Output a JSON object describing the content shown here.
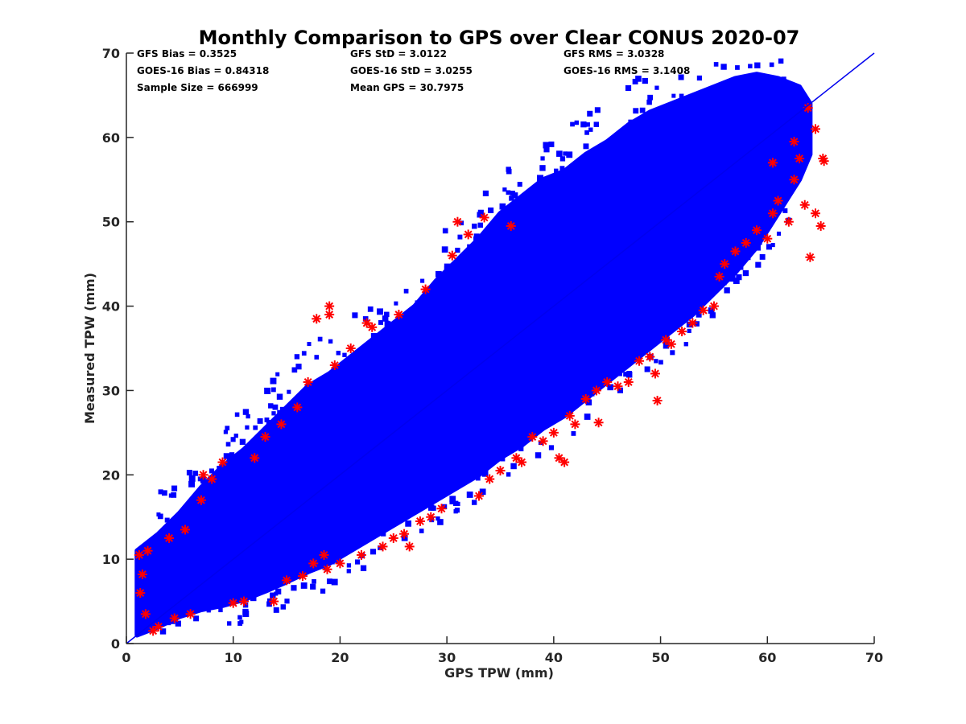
{
  "chart_data": {
    "type": "scatter",
    "title": "Monthly Comparison to GPS over Clear CONUS 2020-07",
    "xlabel": "GPS TPW (mm)",
    "ylabel": "Measured TPW (mm)",
    "xlim": [
      0,
      70
    ],
    "ylim": [
      0,
      70
    ],
    "xticks": [
      0,
      10,
      20,
      30,
      40,
      50,
      60,
      70
    ],
    "yticks": [
      0,
      10,
      20,
      30,
      40,
      50,
      60,
      70
    ],
    "grid": false,
    "one_to_one_line": [
      [
        0,
        0
      ],
      [
        70,
        70
      ]
    ],
    "stats": [
      [
        "GFS Bias = 0.3525",
        "GFS StD = 3.0122",
        "GFS RMS = 3.0328"
      ],
      [
        "GOES-16 Bias = 0.84318",
        "GOES-16 StD = 3.0255",
        "GOES-16 RMS = 3.1408"
      ],
      [
        "Sample Size = 666999",
        "Mean GPS = 30.7975",
        ""
      ]
    ],
    "series": [
      {
        "marker": "asterisk",
        "color": "#ff0000",
        "points": [
          [
            1.2,
            10.5
          ],
          [
            1.5,
            8.2
          ],
          [
            1.3,
            6.0
          ],
          [
            1.8,
            3.5
          ],
          [
            2.0,
            11.0
          ],
          [
            2.5,
            1.5
          ],
          [
            3.0,
            2.0
          ],
          [
            4.0,
            12.5
          ],
          [
            4.5,
            3.0
          ],
          [
            5.5,
            13.5
          ],
          [
            6.0,
            3.5
          ],
          [
            7.2,
            20.0
          ],
          [
            7.0,
            17.0
          ],
          [
            8.0,
            19.5
          ],
          [
            9.0,
            21.5
          ],
          [
            10.0,
            4.8
          ],
          [
            11.0,
            5.0
          ],
          [
            12.0,
            22.0
          ],
          [
            13.0,
            24.5
          ],
          [
            13.8,
            5.0
          ],
          [
            14.5,
            26.0
          ],
          [
            15.0,
            7.5
          ],
          [
            16.0,
            28.0
          ],
          [
            16.5,
            8.0
          ],
          [
            17.0,
            31.0
          ],
          [
            17.8,
            38.5
          ],
          [
            17.5,
            9.5
          ],
          [
            18.5,
            10.5
          ],
          [
            19.0,
            40.0
          ],
          [
            19.0,
            39.0
          ],
          [
            18.8,
            8.8
          ],
          [
            19.5,
            33.0
          ],
          [
            20.0,
            9.5
          ],
          [
            21.0,
            35.0
          ],
          [
            22.0,
            10.5
          ],
          [
            22.5,
            38.0
          ],
          [
            23.0,
            37.5
          ],
          [
            24.0,
            11.5
          ],
          [
            25.0,
            12.5
          ],
          [
            25.5,
            39.0
          ],
          [
            26.0,
            13.0
          ],
          [
            26.5,
            11.5
          ],
          [
            27.5,
            14.5
          ],
          [
            28.0,
            42.0
          ],
          [
            28.5,
            15.0
          ],
          [
            29.5,
            16.0
          ],
          [
            30.5,
            46.0
          ],
          [
            31.0,
            50.0
          ],
          [
            32.0,
            48.5
          ],
          [
            33.0,
            17.5
          ],
          [
            33.5,
            50.5
          ],
          [
            34.0,
            19.5
          ],
          [
            35.0,
            20.5
          ],
          [
            36.0,
            49.5
          ],
          [
            36.5,
            22.0
          ],
          [
            37.0,
            21.5
          ],
          [
            38.0,
            24.5
          ],
          [
            39.0,
            24.0
          ],
          [
            40.0,
            25.0
          ],
          [
            40.5,
            22.0
          ],
          [
            41.0,
            21.5
          ],
          [
            41.5,
            27.0
          ],
          [
            42.0,
            26.0
          ],
          [
            43.0,
            29.0
          ],
          [
            44.0,
            30.0
          ],
          [
            44.2,
            26.2
          ],
          [
            45.0,
            31.0
          ],
          [
            46.0,
            30.5
          ],
          [
            47.0,
            31.0
          ],
          [
            48.0,
            33.5
          ],
          [
            49.0,
            34.0
          ],
          [
            49.5,
            32.0
          ],
          [
            49.7,
            28.8
          ],
          [
            50.5,
            36.0
          ],
          [
            51.0,
            35.5
          ],
          [
            52.0,
            37.0
          ],
          [
            53.0,
            38.0
          ],
          [
            54.0,
            39.5
          ],
          [
            55.0,
            40.0
          ],
          [
            55.5,
            43.5
          ],
          [
            56.0,
            45.0
          ],
          [
            57.0,
            46.5
          ],
          [
            58.0,
            47.5
          ],
          [
            59.0,
            49.0
          ],
          [
            60.0,
            48.0
          ],
          [
            60.5,
            51.0
          ],
          [
            61.0,
            52.5
          ],
          [
            62.0,
            50.0
          ],
          [
            62.5,
            55.0
          ],
          [
            63.0,
            57.5
          ],
          [
            63.5,
            52.0
          ],
          [
            64.0,
            45.8
          ],
          [
            64.5,
            51.0
          ],
          [
            65.0,
            49.5
          ],
          [
            65.2,
            57.5
          ],
          [
            65.3,
            57.2
          ],
          [
            63.8,
            63.5
          ],
          [
            64.5,
            61.0
          ],
          [
            62.5,
            59.5
          ],
          [
            60.5,
            57.0
          ]
        ]
      }
    ]
  }
}
